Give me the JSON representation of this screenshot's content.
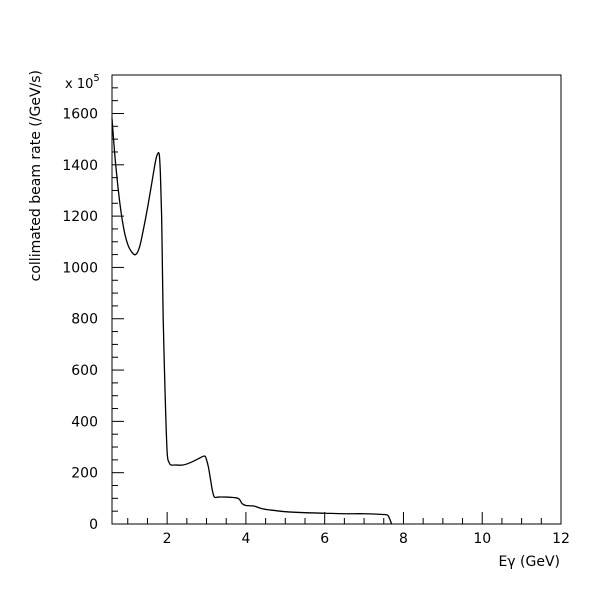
{
  "chart_data": {
    "type": "line",
    "xlabel": "Eγ (GeV)",
    "ylabel": "collimated beam rate (/GeV/s)",
    "y_multiplier": "x 10",
    "y_multiplier_exp": "5",
    "xlim": [
      0.6,
      12
    ],
    "ylim": [
      0,
      1750
    ],
    "x_ticks": [
      2,
      4,
      6,
      8,
      10,
      12
    ],
    "y_ticks": [
      0,
      200,
      400,
      600,
      800,
      1000,
      1200,
      1400,
      1600
    ],
    "grid": false,
    "series": [
      {
        "x": [
          0.6,
          0.65,
          0.7,
          0.8,
          0.9,
          1.0,
          1.1,
          1.2,
          1.3,
          1.4,
          1.5,
          1.6,
          1.7,
          1.75,
          1.8,
          1.83,
          1.86,
          1.88,
          1.9,
          1.95,
          2.0,
          2.05,
          2.1,
          2.2,
          2.4,
          2.6,
          2.8,
          2.95,
          3.0,
          3.05,
          3.1,
          3.15,
          3.2,
          3.3,
          3.5,
          3.8,
          3.9,
          4.0,
          4.2,
          4.4,
          4.6,
          5.0,
          5.5,
          6.0,
          6.5,
          7.0,
          7.5,
          7.6,
          7.65,
          7.7
        ],
        "y": [
          1580,
          1480,
          1390,
          1250,
          1150,
          1090,
          1060,
          1050,
          1080,
          1150,
          1230,
          1320,
          1410,
          1440,
          1440,
          1360,
          1200,
          1000,
          800,
          500,
          280,
          240,
          230,
          230,
          230,
          240,
          255,
          265,
          250,
          220,
          175,
          130,
          105,
          105,
          105,
          100,
          80,
          72,
          70,
          60,
          55,
          48,
          44,
          42,
          40,
          40,
          37,
          34,
          20,
          0
        ]
      }
    ]
  }
}
